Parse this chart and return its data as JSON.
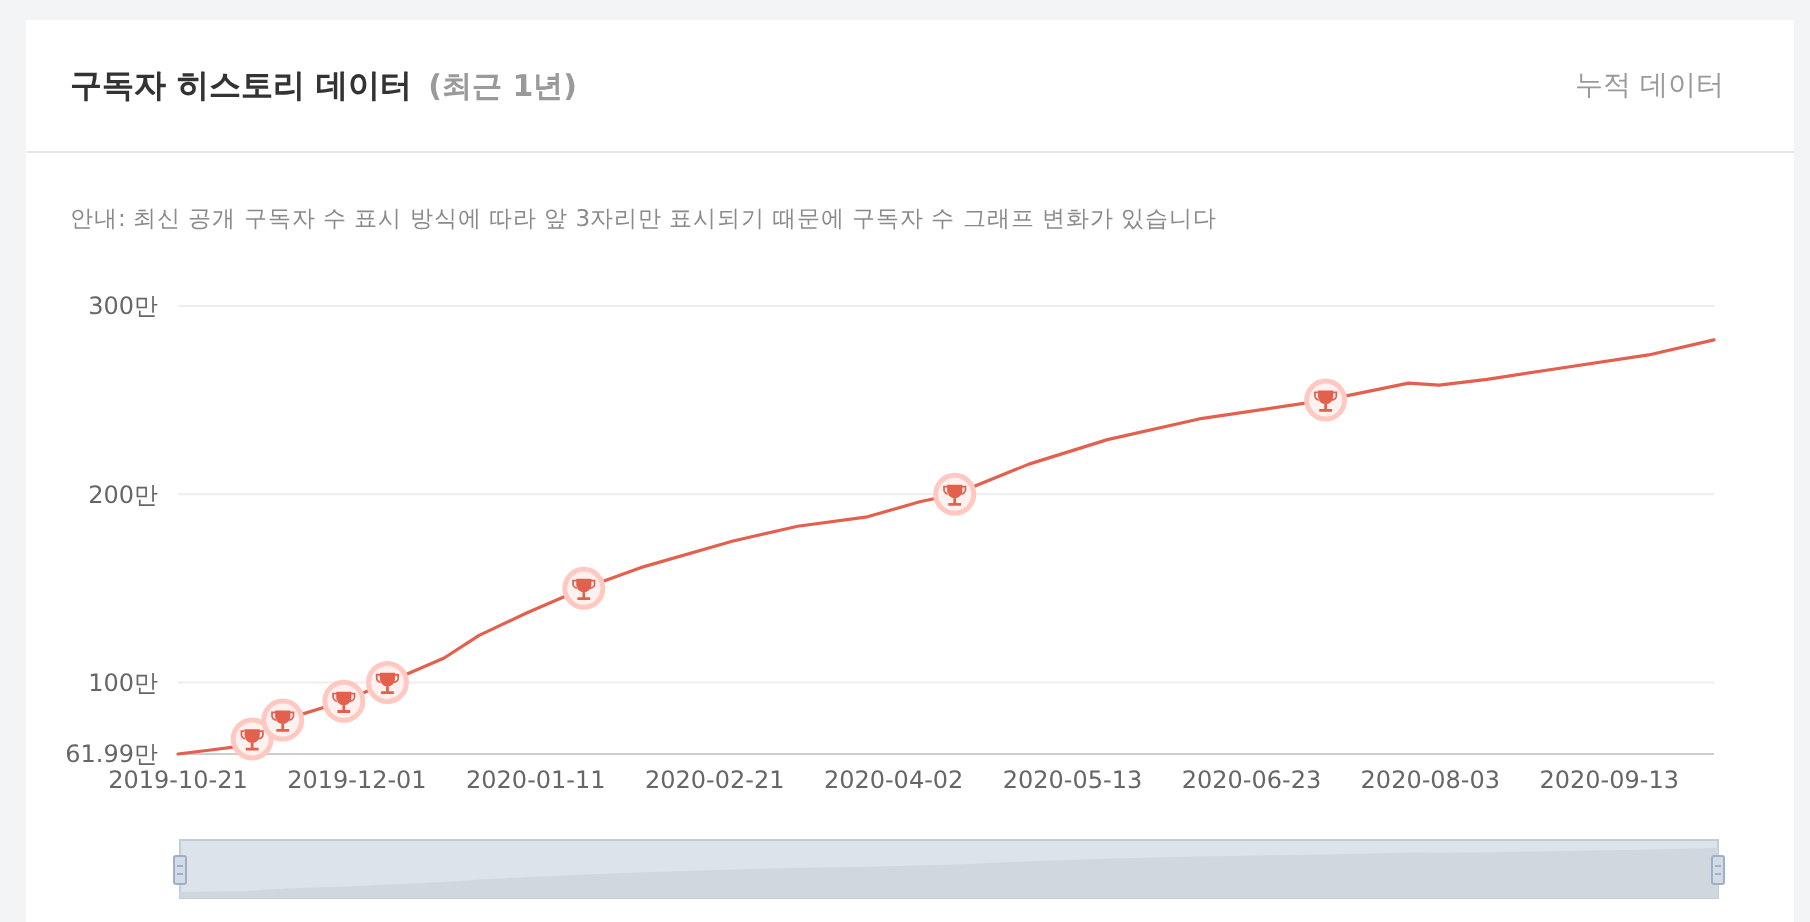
{
  "chart_data": {
    "type": "line",
    "title": "구독자 히스토리 데이터",
    "subtitle": "(최근 1년)",
    "annotations": [
      "누적 데이터",
      "안내: 최신 공개 구독자 수 표시 방식에 따라 앞 3자리만 표시되기 때문에 구독자 수 그래프 변화가 있습니다"
    ],
    "xlim": [
      "2019-10-21",
      "2020-10-07"
    ],
    "xticks": [
      "2019-10-21",
      "2019-12-01",
      "2020-01-11",
      "2020-02-21",
      "2020-04-02",
      "2020-05-13",
      "2020-06-23",
      "2020-08-03",
      "2020-09-13"
    ],
    "ylim": [
      61.99,
      300
    ],
    "yticks": [
      {
        "value": 61.99,
        "label": "61.99만"
      },
      {
        "value": 100,
        "label": "100만"
      },
      {
        "value": 200,
        "label": "200만"
      },
      {
        "value": 300,
        "label": "300만"
      }
    ],
    "grid": "y",
    "series": [
      {
        "color": "#e3604f",
        "x": [
          "2019-10-21",
          "2019-10-28",
          "2019-11-04",
          "2019-11-07",
          "2019-11-14",
          "2019-11-28",
          "2019-12-08",
          "2019-12-21",
          "2019-12-29",
          "2020-01-09",
          "2020-01-22",
          "2020-02-04",
          "2020-02-25",
          "2020-03-11",
          "2020-03-27",
          "2020-04-08",
          "2020-04-16",
          "2020-05-03",
          "2020-05-21",
          "2020-06-11",
          "2020-07-10",
          "2020-07-29",
          "2020-08-05",
          "2020-08-16",
          "2020-08-30",
          "2020-09-22",
          "2020-10-07"
        ],
        "values": [
          61.99,
          64,
          66,
          70,
          80,
          90,
          100,
          113,
          125,
          137,
          150,
          161,
          175,
          183,
          188,
          196,
          200,
          216,
          229,
          240,
          250,
          259,
          258,
          261,
          266,
          274,
          282
        ]
      },
      {
        "type": "scatter",
        "marker": "circle",
        "color": "#fff1ef",
        "x": [
          "2019-11-07",
          "2019-11-14",
          "2019-11-28",
          "2019-12-08",
          "2020-01-22",
          "2020-04-16",
          "2020-07-10"
        ],
        "values": [
          70,
          80,
          90,
          100,
          150,
          200,
          250
        ]
      }
    ]
  }
}
